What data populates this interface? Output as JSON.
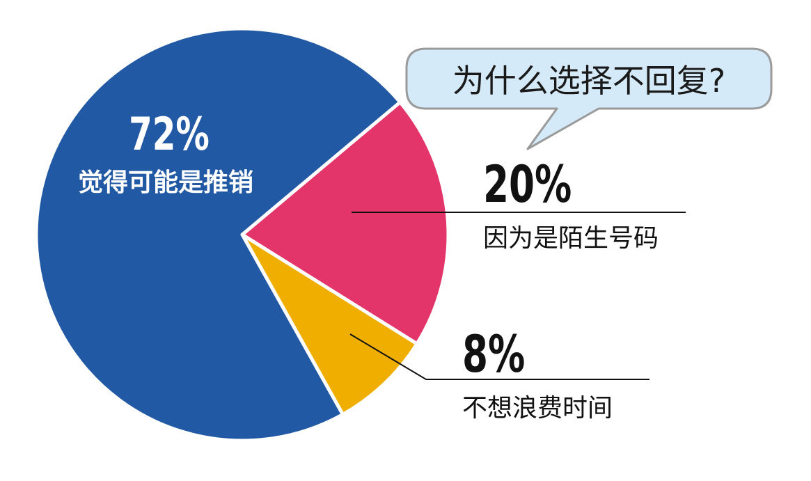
{
  "bubble": {
    "text": "为什么选择不回复?"
  },
  "colors": {
    "blue": "#2159A5",
    "pink": "#E4356B",
    "gold": "#F0AE00",
    "bubble_fill": "#D4EAF8",
    "bubble_stroke": "#9A9A9A"
  },
  "chart_data": {
    "type": "pie",
    "title": "为什么选择不回复?",
    "slices": [
      {
        "label": "觉得可能是推销",
        "value": 72,
        "value_label": "72%",
        "color": "#2159A5"
      },
      {
        "label": "因为是陌生号码",
        "value": 20,
        "value_label": "20%",
        "color": "#E4356B"
      },
      {
        "label": "不想浪费时间",
        "value": 8,
        "value_label": "8%",
        "color": "#F0AE00"
      }
    ]
  }
}
